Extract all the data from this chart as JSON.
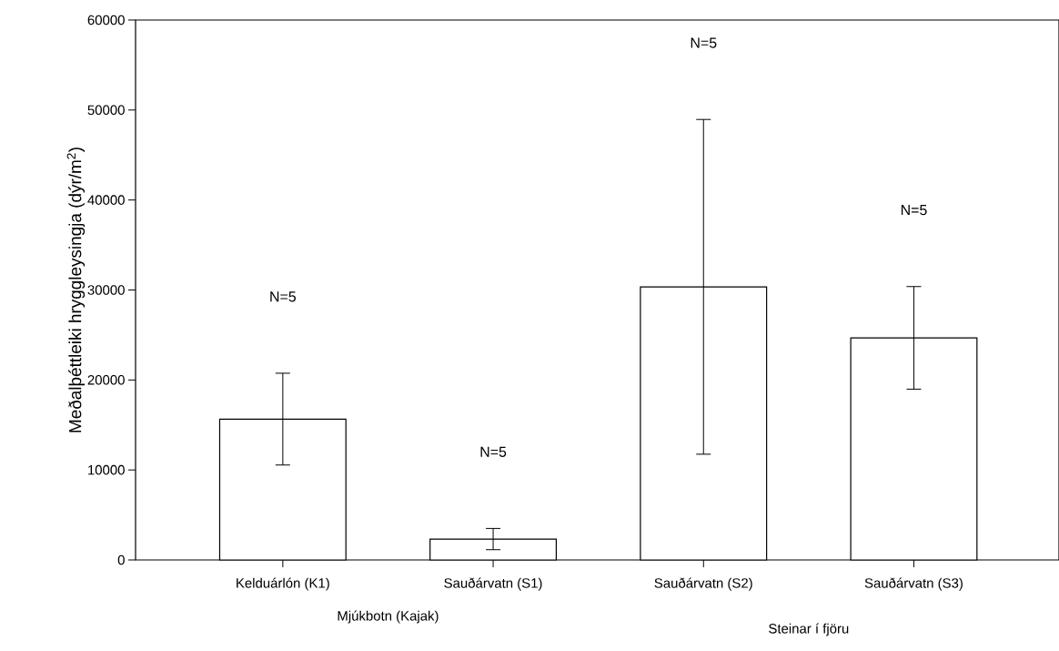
{
  "chart_data": {
    "type": "bar",
    "ylabel": "Meðalþéttleiki hryggleysingja (dýr/m$^{2}$)",
    "categories": [
      "Kelduárlón (K1)",
      "Sauðárvatn (S1)",
      "Sauðárvatn (S2)",
      "Sauðárvatn (S3)"
    ],
    "values": [
      15650,
      2320,
      30350,
      24680
    ],
    "errors": [
      5100,
      1180,
      18600,
      5700
    ],
    "color": "#ffffff",
    "ylim": [
      0,
      60000
    ],
    "yticks": [
      0,
      10000,
      20000,
      30000,
      40000,
      50000,
      60000
    ],
    "annotations": [
      "N=5",
      "N=5",
      "N=5",
      "N=5",
      "Mjúkbotn (Kajak)",
      "Steinar í fjöru"
    ]
  }
}
